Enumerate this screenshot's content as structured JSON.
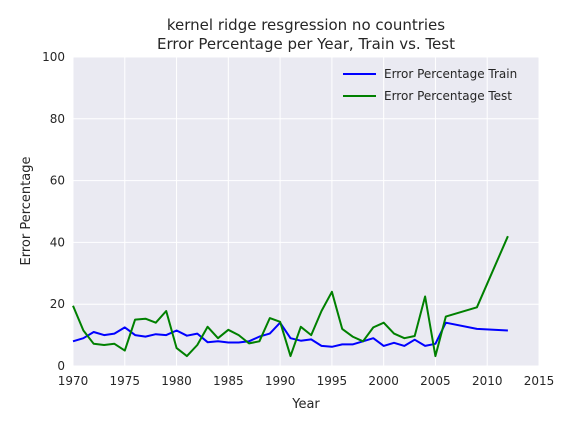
{
  "chart_data": {
    "type": "line",
    "title": "kernel ridge resgression no countries",
    "subtitle": "Error Percentage per Year, Train vs. Test",
    "xlabel": "Year",
    "ylabel": "Error Percentage",
    "xlim": [
      1970,
      2015
    ],
    "ylim": [
      0,
      100
    ],
    "xticks": [
      "1970",
      "1975",
      "1980",
      "1985",
      "1990",
      "1995",
      "2000",
      "2005",
      "2010",
      "2015"
    ],
    "yticks": [
      "0",
      "20",
      "40",
      "60",
      "80",
      "100"
    ],
    "grid": true,
    "legend_position": "top-right",
    "series": [
      {
        "name": "Error Percentage Train",
        "color": "#0000ff",
        "x": [
          1970,
          1971,
          1972,
          1973,
          1974,
          1975,
          1976,
          1977,
          1978,
          1979,
          1980,
          1981,
          1982,
          1983,
          1984,
          1985,
          1986,
          1987,
          1988,
          1989,
          1990,
          1991,
          1992,
          1993,
          1994,
          1995,
          1996,
          1997,
          1998,
          1999,
          2000,
          2001,
          2002,
          2003,
          2004,
          2005,
          2006,
          2009,
          2012
        ],
        "values": [
          8,
          9,
          11,
          10,
          10.5,
          12.5,
          10,
          9.5,
          10.3,
          10,
          11.5,
          9.8,
          10.5,
          7.7,
          8,
          7.6,
          7.6,
          8,
          9.5,
          10.5,
          14,
          9,
          8.2,
          8.6,
          6.5,
          6.2,
          7,
          7,
          8,
          9,
          6.5,
          7.5,
          6.5,
          8.5,
          6.5,
          7.2,
          14,
          12,
          11.5
        ]
      },
      {
        "name": "Error Percentage Test",
        "color": "#008000",
        "x": [
          1970,
          1971,
          1972,
          1973,
          1974,
          1975,
          1976,
          1977,
          1978,
          1979,
          1980,
          1981,
          1982,
          1983,
          1984,
          1985,
          1986,
          1987,
          1988,
          1989,
          1990,
          1991,
          1992,
          1993,
          1994,
          1995,
          1996,
          1997,
          1998,
          1999,
          2000,
          2001,
          2002,
          2003,
          2004,
          2005,
          2006,
          2009,
          2012
        ],
        "values": [
          19.5,
          11.5,
          7.2,
          6.8,
          7.2,
          5,
          15,
          15.3,
          14,
          17.8,
          5.8,
          3.2,
          6.8,
          12.7,
          9,
          11.7,
          10,
          7.3,
          8,
          15.5,
          14.3,
          3.2,
          12.7,
          10,
          17.8,
          24,
          12,
          9.5,
          8,
          12.5,
          14,
          10.5,
          9,
          9.7,
          22.5,
          3.2,
          16,
          19,
          42
        ]
      }
    ]
  }
}
